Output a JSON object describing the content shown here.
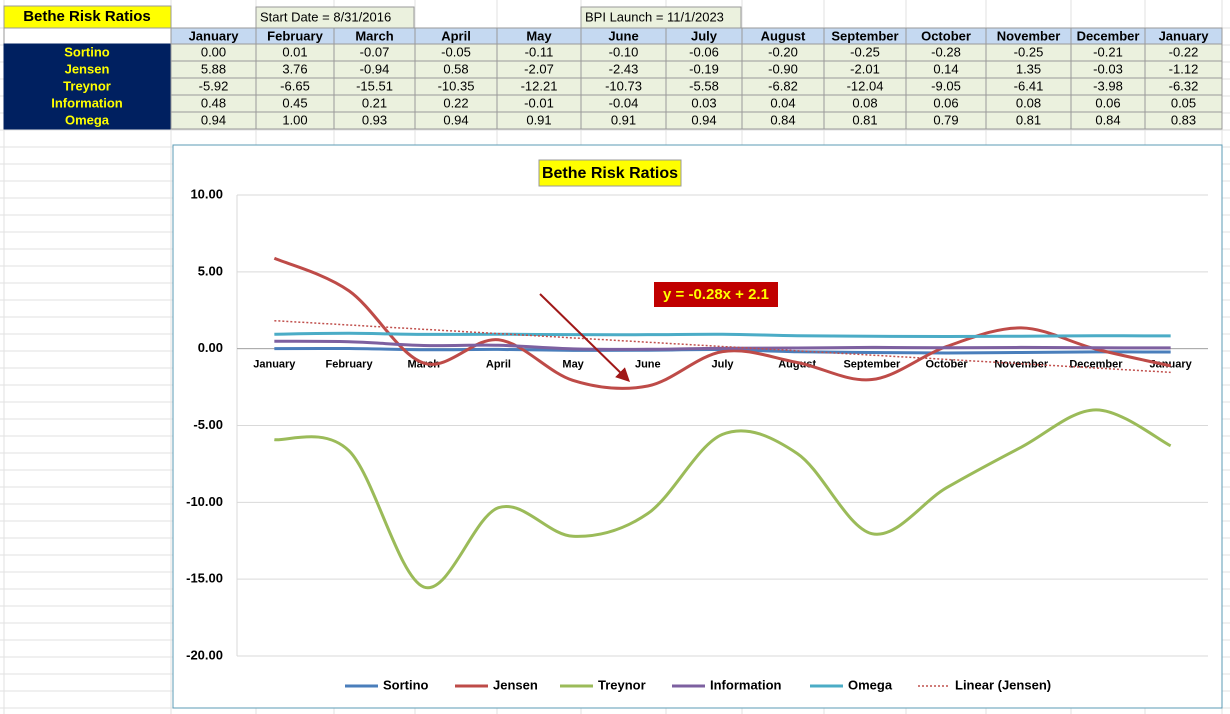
{
  "sheet": {
    "title": "Bethe Risk Ratios",
    "start_date": "Start Date = 8/31/2016",
    "bpi_launch": "BPI Launch = 11/1/2023",
    "table": {
      "header": [
        "January",
        "February",
        "March",
        "April",
        "May",
        "June",
        "July",
        "August",
        "September",
        "October",
        "November",
        "December",
        "January"
      ],
      "rows": [
        {
          "label": "Sortino",
          "cells": [
            "0.00",
            "0.01",
            "-0.07",
            "-0.05",
            "-0.11",
            "-0.10",
            "-0.06",
            "-0.20",
            "-0.25",
            "-0.28",
            "-0.25",
            "-0.21",
            "-0.22"
          ]
        },
        {
          "label": "Jensen",
          "cells": [
            "5.88",
            "3.76",
            "-0.94",
            "0.58",
            "-2.07",
            "-2.43",
            "-0.19",
            "-0.90",
            "-2.01",
            "0.14",
            "1.35",
            "-0.03",
            "-1.12"
          ]
        },
        {
          "label": "Treynor",
          "cells": [
            "-5.92",
            "-6.65",
            "-15.51",
            "-10.35",
            "-12.21",
            "-10.73",
            "-5.58",
            "-6.82",
            "-12.04",
            "-9.05",
            "-6.41",
            "-3.98",
            "-6.32"
          ]
        },
        {
          "label": "Information",
          "cells": [
            "0.48",
            "0.45",
            "0.21",
            "0.22",
            "-0.01",
            "-0.04",
            "0.03",
            "0.04",
            "0.08",
            "0.06",
            "0.08",
            "0.06",
            "0.05"
          ]
        },
        {
          "label": "Omega",
          "cells": [
            "0.94",
            "1.00",
            "0.93",
            "0.94",
            "0.91",
            "0.91",
            "0.94",
            "0.84",
            "0.81",
            "0.79",
            "0.81",
            "0.84",
            "0.83"
          ]
        }
      ]
    }
  },
  "chart_data": {
    "type": "line",
    "title": "Bethe Risk Ratios",
    "categories": [
      "January",
      "February",
      "March",
      "April",
      "May",
      "June",
      "July",
      "August",
      "September",
      "October",
      "November",
      "December",
      "January"
    ],
    "series": [
      {
        "name": "Sortino",
        "color": "#4a7ebb",
        "values": [
          0.0,
          0.01,
          -0.07,
          -0.05,
          -0.11,
          -0.1,
          -0.06,
          -0.2,
          -0.25,
          -0.28,
          -0.25,
          -0.21,
          -0.22
        ]
      },
      {
        "name": "Jensen",
        "color": "#be4b48",
        "values": [
          5.88,
          3.76,
          -0.94,
          0.58,
          -2.07,
          -2.43,
          -0.19,
          -0.9,
          -2.01,
          0.14,
          1.35,
          -0.03,
          -1.12
        ]
      },
      {
        "name": "Treynor",
        "color": "#9bbb59",
        "values": [
          -5.92,
          -6.65,
          -15.51,
          -10.35,
          -12.21,
          -10.73,
          -5.58,
          -6.82,
          -12.04,
          -9.05,
          -6.41,
          -3.98,
          -6.32
        ]
      },
      {
        "name": "Information",
        "color": "#7d60a0",
        "values": [
          0.48,
          0.45,
          0.21,
          0.22,
          -0.01,
          -0.04,
          0.03,
          0.04,
          0.08,
          0.06,
          0.08,
          0.06,
          0.05
        ]
      },
      {
        "name": "Omega",
        "color": "#4bacc6",
        "values": [
          0.94,
          1.0,
          0.93,
          0.94,
          0.91,
          0.91,
          0.94,
          0.84,
          0.81,
          0.79,
          0.81,
          0.84,
          0.83
        ]
      }
    ],
    "trendline": {
      "name": "Linear (Jensen)",
      "color": "#c0504d",
      "slope": -0.28,
      "intercept": 2.1,
      "label": "y = -0.28x + 2.1"
    },
    "ylim": [
      -20,
      10
    ],
    "yticks": [
      {
        "value": -20,
        "label": "-20.00"
      },
      {
        "value": -15,
        "label": "-15.00"
      },
      {
        "value": -10,
        "label": "-10.00"
      },
      {
        "value": -5,
        "label": "-5.00"
      },
      {
        "value": 0,
        "label": "0.00"
      },
      {
        "value": 5,
        "label": "5.00"
      },
      {
        "value": 10,
        "label": "10.00"
      }
    ],
    "grid": true,
    "legend": "bottom"
  }
}
